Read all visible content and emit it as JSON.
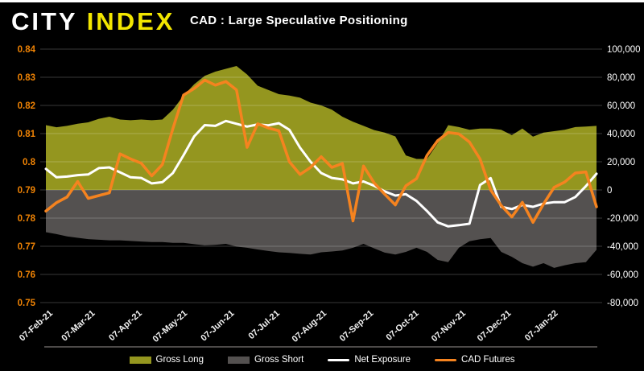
{
  "header": {
    "logo_city": "CITY",
    "logo_index": "INDEX",
    "title": "CAD : Large Speculative Positioning"
  },
  "colors": {
    "background": "#000000",
    "gross_long": "#94961f",
    "gross_short": "#545150",
    "net_exposure": "#ffffff",
    "cad_futures": "#f5831f",
    "left_axis_text": "#f08304",
    "right_axis_text": "#ffffff",
    "x_axis_text": "#f2f2f2",
    "gridline": "rgba(255,255,255,0.22)",
    "bottom_axis_line": "#4d4a49",
    "logo_city": "#ffffff",
    "logo_index": "#f2e600"
  },
  "legend": {
    "items": [
      {
        "label": "Gross Long",
        "swatch": "area",
        "color": "#94961f"
      },
      {
        "label": "Gross Short",
        "swatch": "area",
        "color": "#545150"
      },
      {
        "label": "Net Exposure",
        "swatch": "line",
        "color": "#ffffff"
      },
      {
        "label": "CAD Futures",
        "swatch": "line",
        "color": "#f5831f"
      }
    ]
  },
  "chart_data": {
    "type": "line+area",
    "title": "CAD : Large Speculative Positioning",
    "grid": "horizontal",
    "legend_position": "bottom",
    "x": [
      "07-Feb-21",
      "14-Feb-21",
      "21-Feb-21",
      "28-Feb-21",
      "07-Mar-21",
      "14-Mar-21",
      "21-Mar-21",
      "28-Mar-21",
      "04-Apr-21",
      "11-Apr-21",
      "18-Apr-21",
      "25-Apr-21",
      "02-May-21",
      "09-May-21",
      "16-May-21",
      "23-May-21",
      "30-May-21",
      "06-Jun-21",
      "13-Jun-21",
      "20-Jun-21",
      "27-Jun-21",
      "04-Jul-21",
      "11-Jul-21",
      "18-Jul-21",
      "25-Jul-21",
      "01-Aug-21",
      "08-Aug-21",
      "15-Aug-21",
      "22-Aug-21",
      "29-Aug-21",
      "05-Sep-21",
      "12-Sep-21",
      "19-Sep-21",
      "26-Sep-21",
      "03-Oct-21",
      "10-Oct-21",
      "17-Oct-21",
      "24-Oct-21",
      "31-Oct-21",
      "07-Nov-21",
      "14-Nov-21",
      "21-Nov-21",
      "28-Nov-21",
      "05-Dec-21",
      "12-Dec-21",
      "19-Dec-21",
      "26-Dec-21",
      "02-Jan-22",
      "09-Jan-22",
      "16-Jan-22",
      "23-Jan-22",
      "30-Jan-22",
      "06-Feb-22"
    ],
    "x_ticks": [
      {
        "label": "07-Feb-21",
        "pos": 0
      },
      {
        "label": "07-Mar-21",
        "pos": 4
      },
      {
        "label": "07-Apr-21",
        "pos": 8.43
      },
      {
        "label": "07-May-21",
        "pos": 12.71
      },
      {
        "label": "07-Jun-21",
        "pos": 17.14
      },
      {
        "label": "07-Jul-21",
        "pos": 21.43
      },
      {
        "label": "07-Aug-21",
        "pos": 25.86
      },
      {
        "label": "07-Sep-21",
        "pos": 30.29
      },
      {
        "label": "07-Oct-21",
        "pos": 34.57
      },
      {
        "label": "07-Nov-21",
        "pos": 39
      },
      {
        "label": "07-Dec-21",
        "pos": 43.29
      },
      {
        "label": "07-Jan-22",
        "pos": 47.71
      }
    ],
    "left_axis": {
      "min": 0.75,
      "max": 0.84,
      "tick_labels": [
        "0.84",
        "0.83",
        "0.82",
        "0.81",
        "0.8",
        "0.79",
        "0.78",
        "0.77",
        "0.76",
        "0.75"
      ],
      "series": "CAD Futures"
    },
    "right_axis": {
      "min": -80000,
      "max": 100000,
      "tick_labels": [
        "100,000",
        "80,000",
        "60,000",
        "40,000",
        "20,000",
        "0",
        "-20,000",
        "-40,000",
        "-60,000",
        "-80,000"
      ],
      "series": "Gross Long, Gross Short, Net Exposure"
    },
    "series": [
      {
        "name": "Gross Long",
        "type": "area",
        "axis": "right",
        "baseline": 0,
        "color": "#94961f",
        "values": [
          46000,
          44500,
          45500,
          47000,
          48000,
          50500,
          52000,
          50000,
          49500,
          50000,
          49500,
          50000,
          57000,
          67000,
          75000,
          81000,
          84000,
          86000,
          88000,
          82000,
          74000,
          71000,
          68000,
          67000,
          65500,
          62000,
          60000,
          57000,
          52000,
          48400,
          45500,
          42500,
          40700,
          38000,
          24500,
          22000,
          22000,
          33000,
          46000,
          44600,
          42700,
          43600,
          43600,
          42700,
          38900,
          43600,
          37900,
          40700,
          41700,
          42700,
          44600,
          45000,
          45500
        ]
      },
      {
        "name": "Gross Short",
        "type": "area",
        "axis": "right",
        "baseline": 0,
        "color": "#545150",
        "values": [
          -30000,
          -31400,
          -33000,
          -34000,
          -34900,
          -35400,
          -35800,
          -35800,
          -36200,
          -36600,
          -37000,
          -37000,
          -37600,
          -37600,
          -38500,
          -39400,
          -39000,
          -38300,
          -40200,
          -41100,
          -42300,
          -43400,
          -44300,
          -44700,
          -45400,
          -45900,
          -44300,
          -43700,
          -43000,
          -41100,
          -38300,
          -41500,
          -44500,
          -45900,
          -44000,
          -41100,
          -44000,
          -49700,
          -51300,
          -41100,
          -36400,
          -35000,
          -34100,
          -44000,
          -47500,
          -52000,
          -54500,
          -52000,
          -55400,
          -53500,
          -52000,
          -51300,
          -42500
        ]
      },
      {
        "name": "Net Exposure",
        "type": "line",
        "axis": "right",
        "color": "#ffffff",
        "values": [
          15000,
          9000,
          9500,
          10500,
          11000,
          15500,
          16000,
          12500,
          9000,
          8500,
          4600,
          5500,
          12000,
          24600,
          38000,
          46000,
          45500,
          49000,
          47000,
          45000,
          46500,
          45900,
          47400,
          42700,
          30000,
          20000,
          12000,
          8500,
          7500,
          4600,
          6000,
          3000,
          -1000,
          -4000,
          -3000,
          -7800,
          -15000,
          -23000,
          -25900,
          -25000,
          -24000,
          3500,
          8400,
          -12000,
          -13600,
          -10700,
          -12000,
          -9700,
          -8700,
          -8700,
          -5000,
          2700,
          11500
        ]
      },
      {
        "name": "CAD Futures",
        "type": "line",
        "axis": "left",
        "color": "#f5831f",
        "values": [
          0.7825,
          0.7855,
          0.7875,
          0.793,
          0.787,
          0.788,
          0.789,
          0.8028,
          0.801,
          0.7995,
          0.795,
          0.799,
          0.8118,
          0.8237,
          0.826,
          0.829,
          0.8272,
          0.8285,
          0.8255,
          0.8051,
          0.8135,
          0.812,
          0.811,
          0.8,
          0.7955,
          0.798,
          0.8018,
          0.798,
          0.7994,
          0.779,
          0.7985,
          0.7925,
          0.7885,
          0.7847,
          0.7915,
          0.794,
          0.8023,
          0.8075,
          0.8104,
          0.8099,
          0.807,
          0.801,
          0.79,
          0.7845,
          0.7804,
          0.7856,
          0.7785,
          0.785,
          0.7909,
          0.7928,
          0.796,
          0.7964,
          0.784
        ]
      }
    ]
  }
}
